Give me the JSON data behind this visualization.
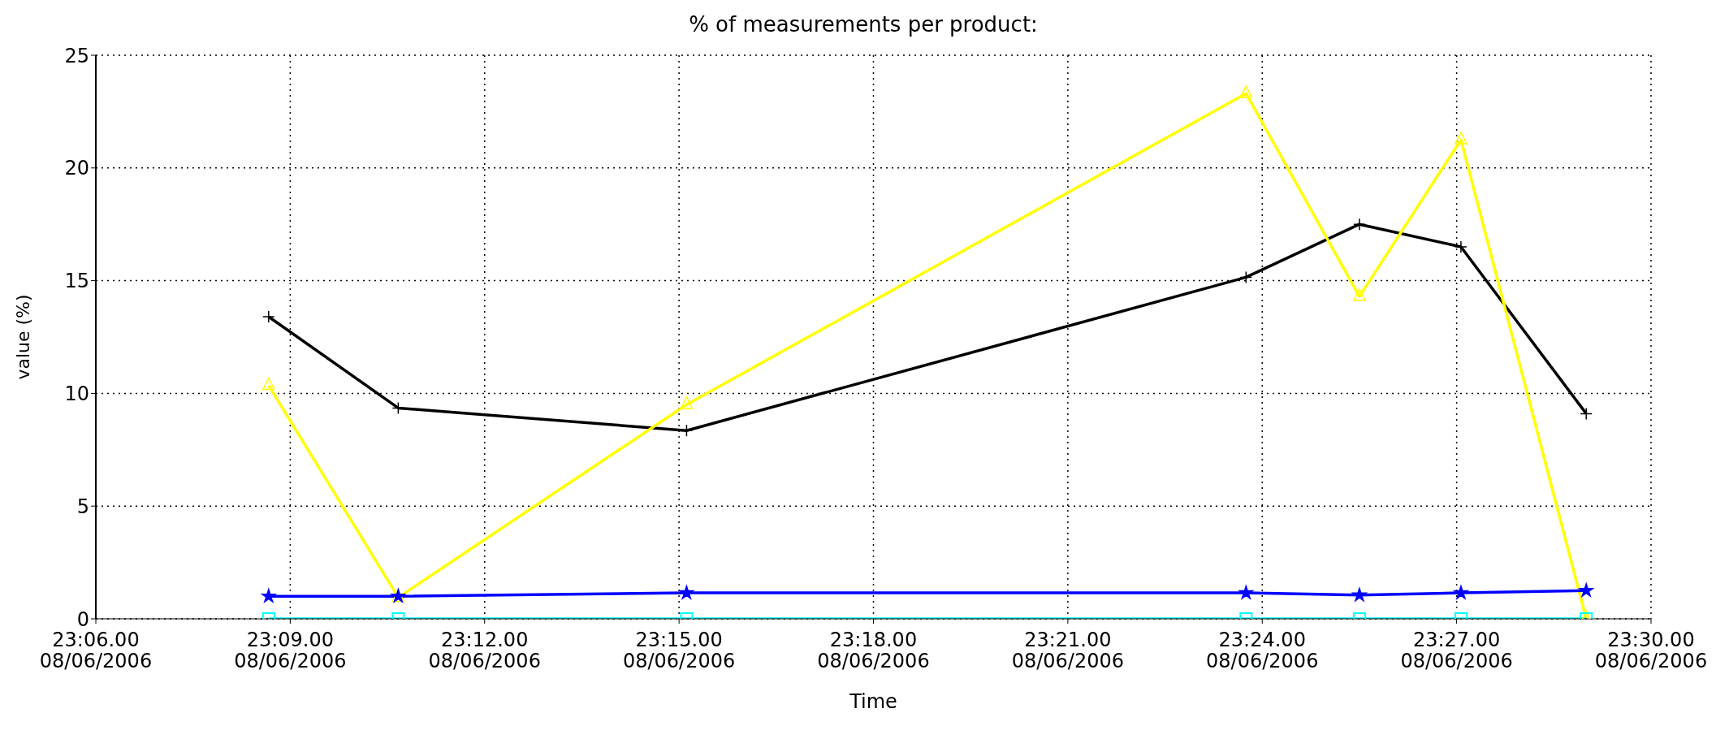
{
  "chart_data": {
    "type": "line",
    "title": "% of measurements per product:",
    "xlabel": "Time",
    "ylabel": "value (%)",
    "xlim": [
      "2006-06-08T23:06",
      "2006-06-08T23:30"
    ],
    "xticks": [
      {
        "value": "2006-06-08T23:06",
        "label": "23:06.00 08/06/2006"
      },
      {
        "value": "2006-06-08T23:09",
        "label": "23:09.00 08/06/2006"
      },
      {
        "value": "2006-06-08T23:12",
        "label": "23:12.00 08/06/2006"
      },
      {
        "value": "2006-06-08T23:15",
        "label": "23:15.00 08/06/2006"
      },
      {
        "value": "2006-06-08T23:18",
        "label": "23:18.00 08/06/2006"
      },
      {
        "value": "2006-06-08T23:21",
        "label": "23:21.00 08/06/2006"
      },
      {
        "value": "2006-06-08T23:24",
        "label": "23:24.00 08/06/2006"
      },
      {
        "value": "2006-06-08T23:27",
        "label": "23:27.00 08/06/2006"
      },
      {
        "value": "2006-06-08T23:30",
        "label": "23:30.00 08/06/2006"
      }
    ],
    "ylim": [
      0,
      25
    ],
    "yticks": [
      0,
      5,
      10,
      15,
      20,
      25
    ],
    "grid": true,
    "line_style": "solid",
    "x": [
      "2006-06-08T23:08:40",
      "2006-06-08T23:10:40",
      "2006-06-08T23:15:07",
      "2006-06-08T23:23:45",
      "2006-06-08T23:25:30",
      "2006-06-08T23:27:04",
      "2006-06-08T23:29:00"
    ],
    "series": [
      {
        "color": "#000000",
        "marker": "cross",
        "values": [
          13.4,
          9.35,
          8.35,
          15.15,
          17.5,
          16.5,
          9.1
        ]
      },
      {
        "color": "#ffff00",
        "marker": "triangle",
        "values": [
          10.35,
          0.95,
          9.5,
          23.3,
          14.3,
          21.25,
          0
        ]
      },
      {
        "color": "#0000ff",
        "marker": "star",
        "values": [
          1.0,
          1.0,
          1.15,
          1.15,
          1.05,
          1.15,
          1.25
        ]
      },
      {
        "color": "#00ffff",
        "marker": "square",
        "values": [
          0,
          0,
          0,
          0,
          0,
          0,
          0
        ]
      }
    ]
  }
}
